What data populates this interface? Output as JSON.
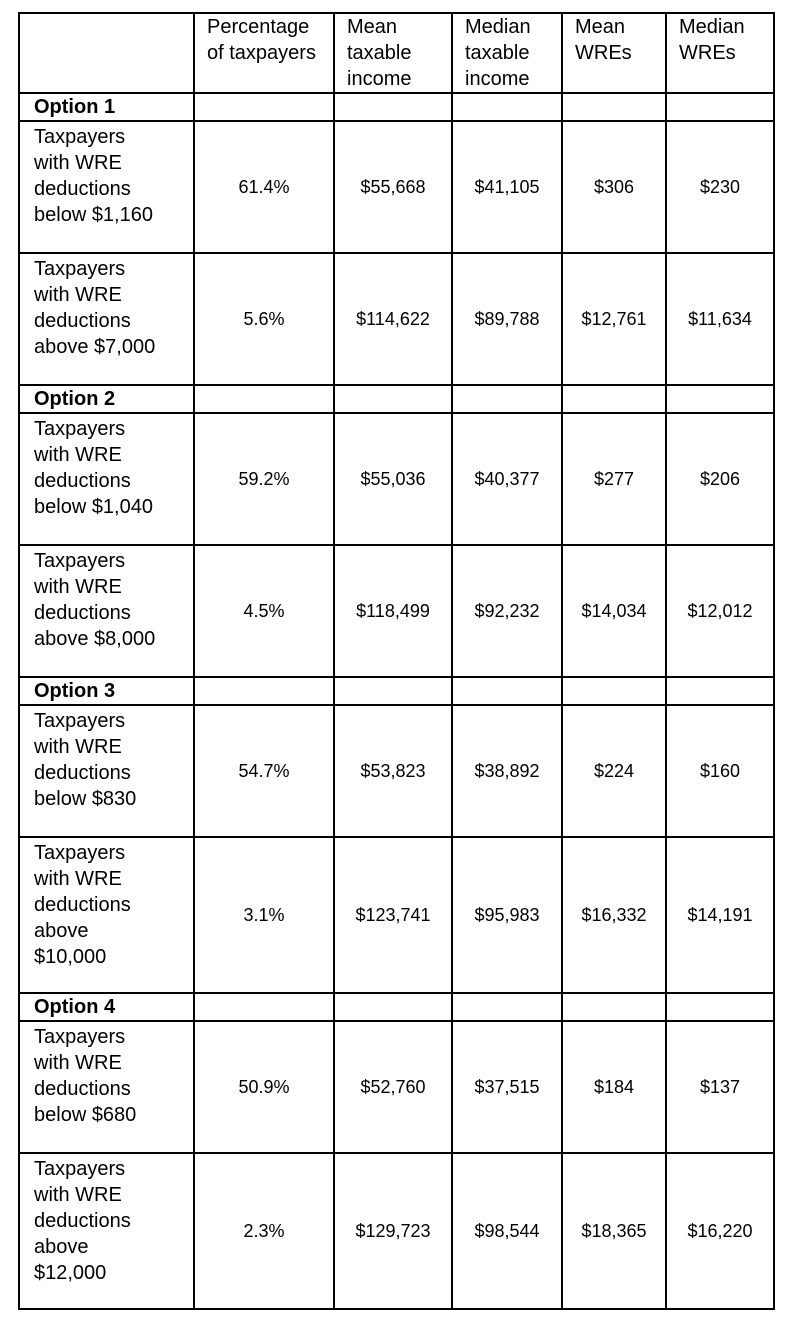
{
  "table": {
    "header": [
      "Percentage of taxpayers",
      "Mean taxable income",
      "Median taxable income",
      "Mean WREs",
      "Median WREs"
    ],
    "groups": [
      {
        "option": "Option 1",
        "rows": [
          {
            "label": "Taxpayers with WRE deductions below $1,160",
            "values": [
              "61.4%",
              "$55,668",
              "$41,105",
              "$306",
              "$230"
            ]
          },
          {
            "label": "Taxpayers with WRE deductions above $7,000",
            "values": [
              "5.6%",
              "$114,622",
              "$89,788",
              "$12,761",
              "$11,634"
            ]
          }
        ]
      },
      {
        "option": "Option 2",
        "rows": [
          {
            "label": "Taxpayers with WRE deductions below $1,040",
            "values": [
              "59.2%",
              "$55,036",
              "$40,377",
              "$277",
              "$206"
            ]
          },
          {
            "label": "Taxpayers with WRE deductions above $8,000",
            "values": [
              "4.5%",
              "$118,499",
              "$92,232",
              "$14,034",
              "$12,012"
            ]
          }
        ]
      },
      {
        "option": "Option 3",
        "rows": [
          {
            "label": "Taxpayers with WRE deductions below $830",
            "values": [
              "54.7%",
              "$53,823",
              "$38,892",
              "$224",
              "$160"
            ]
          },
          {
            "label": "Taxpayers with WRE deductions above $10,000",
            "values": [
              "3.1%",
              "$123,741",
              "$95,983",
              "$16,332",
              "$14,191"
            ]
          }
        ]
      },
      {
        "option": "Option 4",
        "rows": [
          {
            "label": "Taxpayers with WRE deductions below $680",
            "values": [
              "50.9%",
              "$52,760",
              "$37,515",
              "$184",
              "$137"
            ]
          },
          {
            "label": "Taxpayers with WRE deductions above $12,000",
            "values": [
              "2.3%",
              "$129,723",
              "$98,544",
              "$18,365",
              "$16,220"
            ]
          }
        ]
      }
    ]
  }
}
